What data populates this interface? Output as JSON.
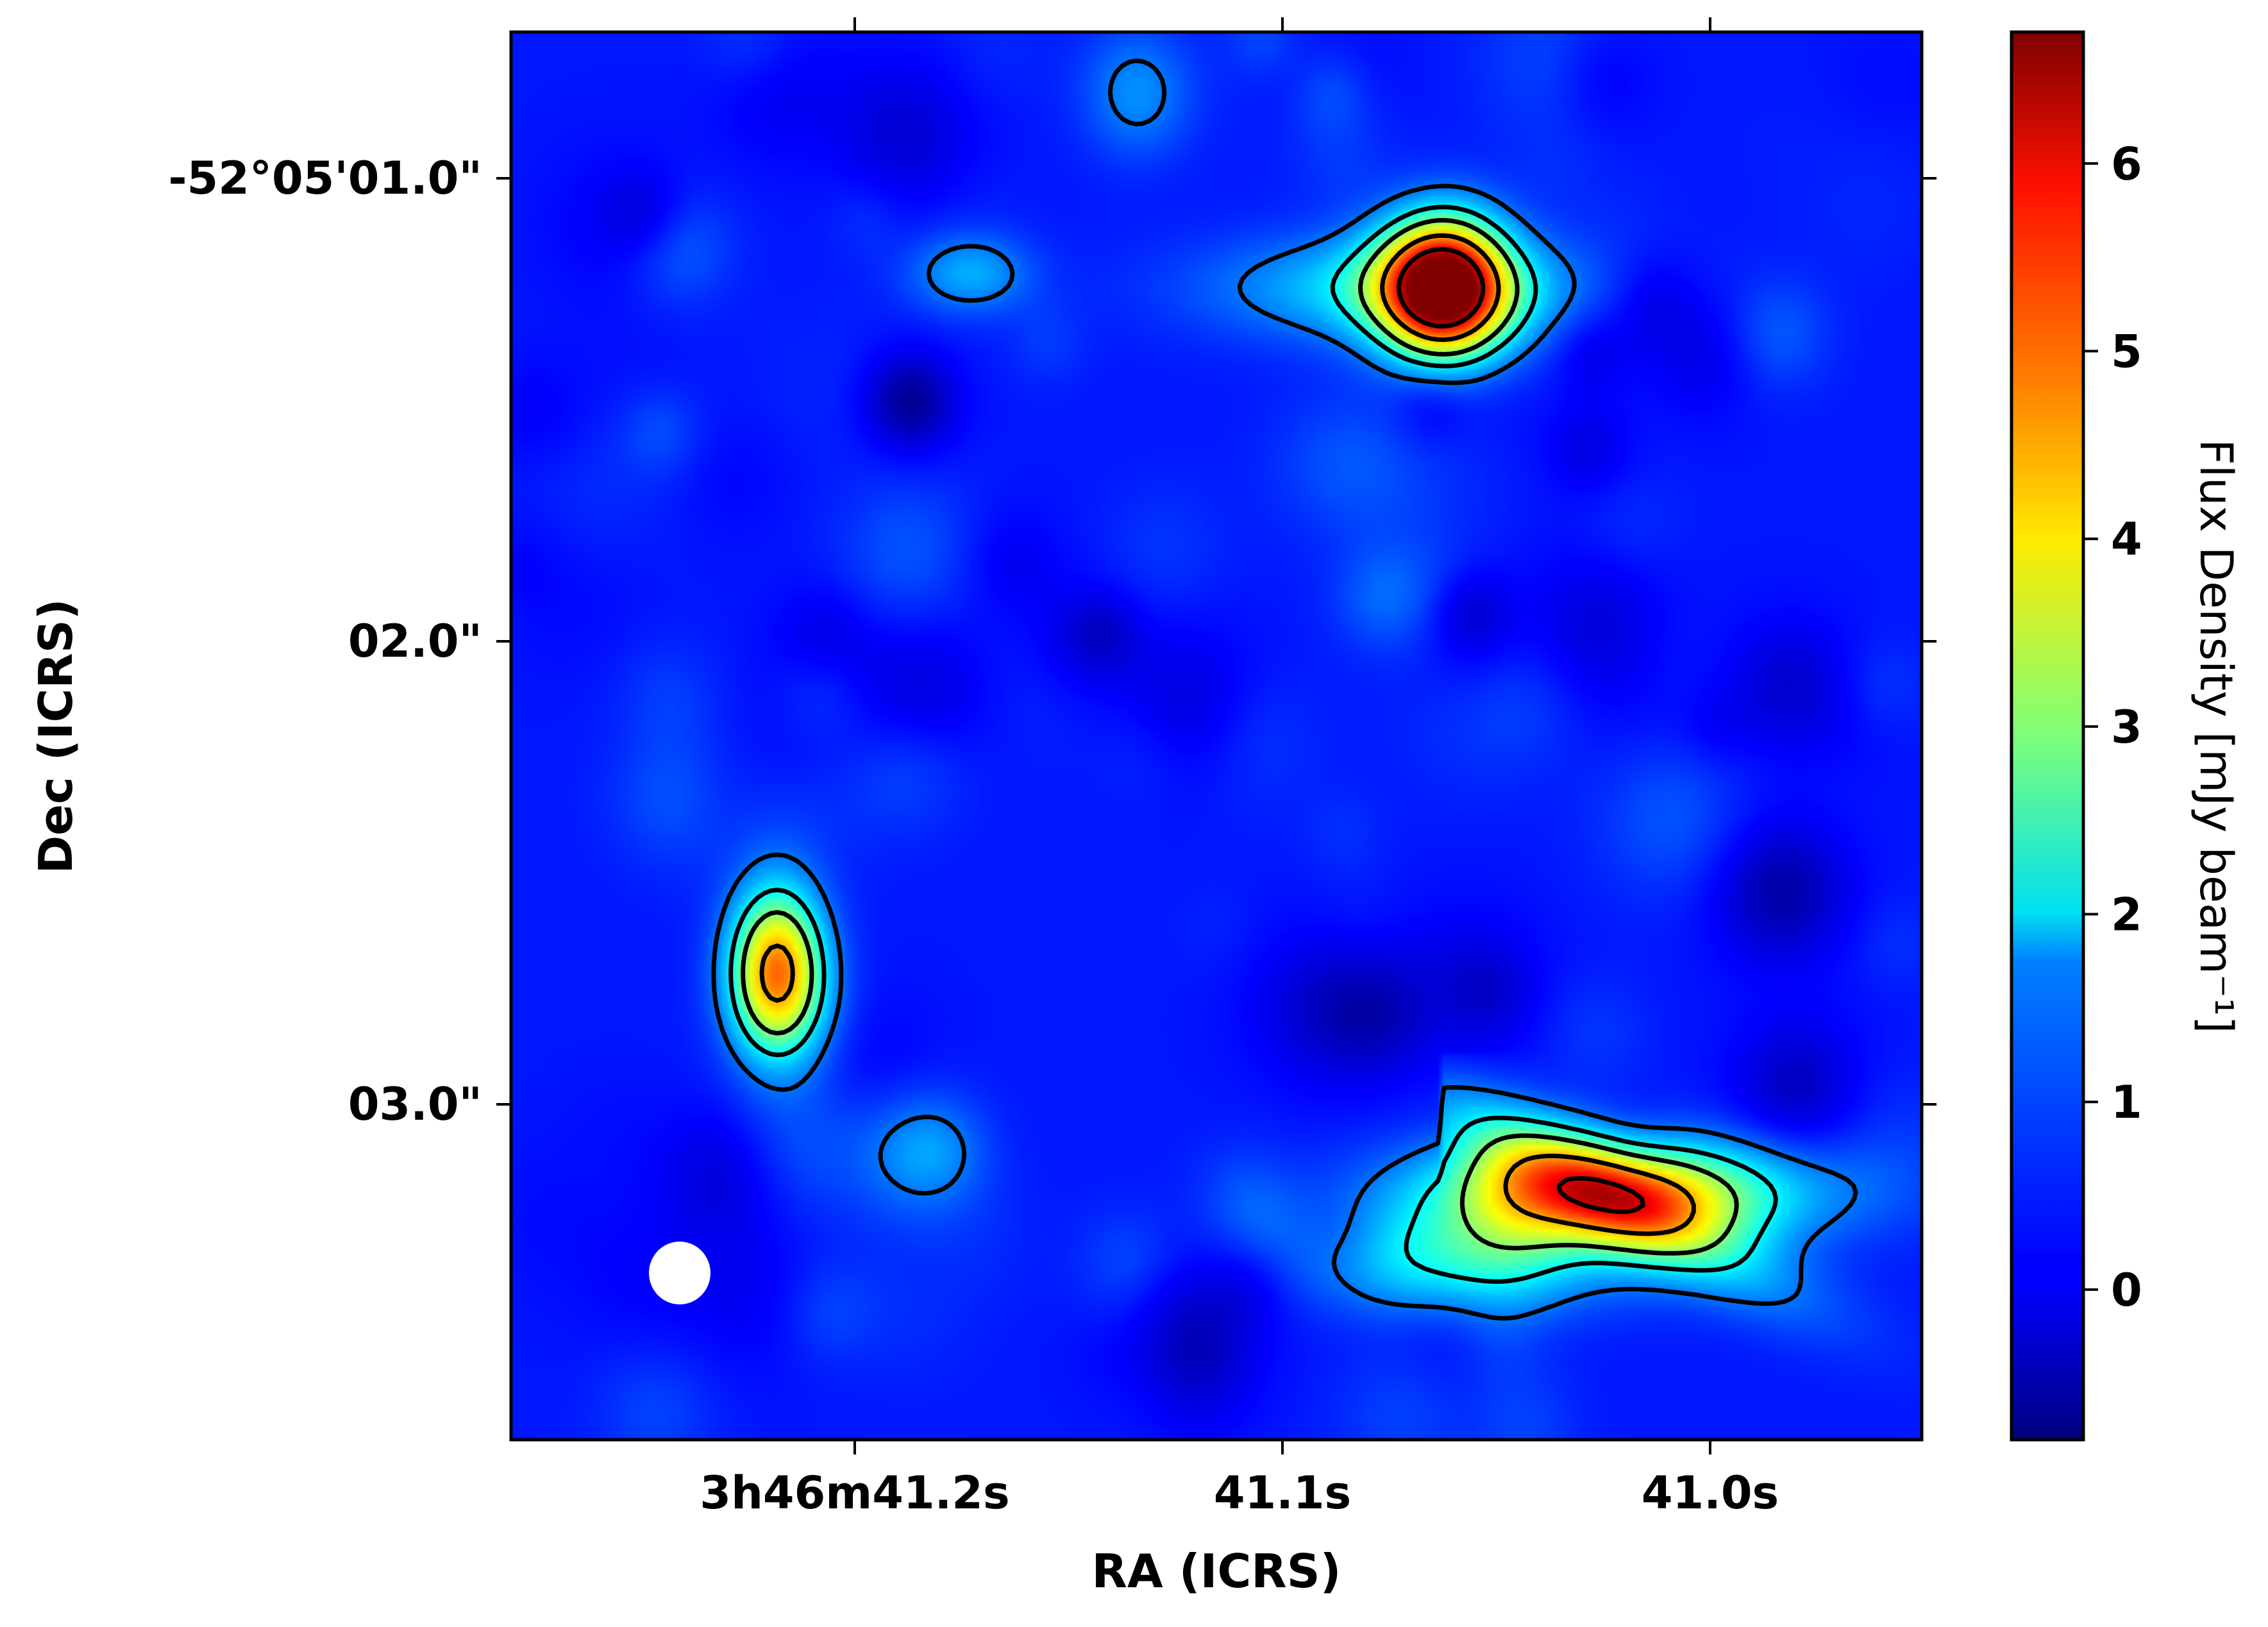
{
  "chart_data": {
    "type": "heatmap",
    "title": "",
    "xlabel": "RA (ICRS)",
    "ylabel": "Dec (ICRS)",
    "x_ticks": [
      "3h46m41.2s",
      "41.1s",
      "41.0s"
    ],
    "y_ticks": [
      "-52°05'01.0\"",
      "02.0\"",
      "03.0\""
    ],
    "colorbar": {
      "label": "Flux Density [mJy beam⁻¹]",
      "ticks": [
        "0",
        "1",
        "2",
        "3",
        "4",
        "5",
        "6"
      ],
      "range": [
        -0.8,
        6.7
      ],
      "colormap": "jet"
    },
    "background_level": 0.3,
    "sources": [
      {
        "name": "",
        "ra_offset_arcsec": 0.4,
        "dec_offset_arcsec": 1.25,
        "peak_mJy": 6.7,
        "sigma_ra_arcsec": 0.1,
        "sigma_dec_arcsec": 0.1
      },
      {
        "name": "",
        "ra_offset_arcsec": 0.3,
        "dec_offset_arcsec": 1.25,
        "peak_mJy": 1.5,
        "sigma_ra_arcsec": 0.3,
        "sigma_dec_arcsec": 0.08
      },
      {
        "name": "",
        "ra_offset_arcsec": -0.7,
        "dec_offset_arcsec": 1.22,
        "peak_mJy": 1.1,
        "sigma_ra_arcsec": 0.1,
        "sigma_dec_arcsec": 0.06
      },
      {
        "name": "",
        "ra_offset_arcsec": -1.15,
        "dec_offset_arcsec": 2.72,
        "peak_mJy": 4.5,
        "sigma_ra_arcsec": 0.075,
        "sigma_dec_arcsec": 0.12
      },
      {
        "name": "",
        "ra_offset_arcsec": 0.8,
        "dec_offset_arcsec": 3.2,
        "peak_mJy": 3.8,
        "sigma_ra_arcsec": 0.3,
        "sigma_dec_arcsec": 0.08
      },
      {
        "name": "",
        "ra_offset_arcsec": 0.45,
        "dec_offset_arcsec": 3.35,
        "peak_mJy": 1.8,
        "sigma_ra_arcsec": 0.25,
        "sigma_dec_arcsec": 0.08
      }
    ],
    "contours": [
      {
        "name": "",
        "levels_mJy": [
          1.0,
          2.0,
          3.0,
          4.5,
          6.0
        ]
      }
    ],
    "beam": {
      "shape": "ellipse",
      "color": "#ffffff"
    }
  }
}
